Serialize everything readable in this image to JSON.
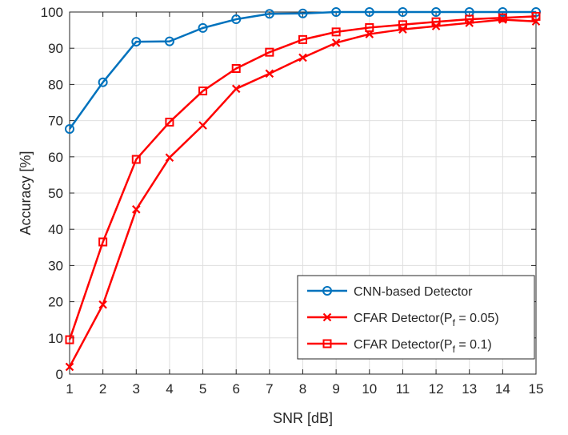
{
  "chart_data": {
    "type": "line",
    "xlabel": "SNR [dB]",
    "ylabel": "Accuracy [%]",
    "xlim": [
      1,
      15
    ],
    "ylim": [
      0,
      100
    ],
    "xticks": [
      1,
      2,
      3,
      4,
      5,
      6,
      7,
      8,
      9,
      10,
      11,
      12,
      13,
      14,
      15
    ],
    "yticks": [
      0,
      10,
      20,
      30,
      40,
      50,
      60,
      70,
      80,
      90,
      100
    ],
    "grid": true,
    "legend_position": "bottom-right",
    "x": [
      1,
      2,
      3,
      4,
      5,
      6,
      7,
      8,
      9,
      10,
      11,
      12,
      13,
      14,
      15
    ],
    "series": [
      {
        "name": "CNN-based Detector",
        "color": "#0072BD",
        "marker": "circle",
        "values": [
          67.7,
          80.6,
          91.8,
          91.9,
          95.6,
          98.0,
          99.5,
          99.6,
          100,
          100,
          100,
          100,
          100,
          100,
          100
        ]
      },
      {
        "name": "CFAR Detector(P",
        "name_sub": "f",
        "name_suffix": " = 0.05)",
        "color": "#FF0000",
        "marker": "x",
        "values": [
          2.0,
          19.2,
          45.5,
          59.8,
          68.7,
          78.8,
          83.0,
          87.4,
          91.5,
          93.9,
          95.2,
          96.1,
          97.0,
          97.9,
          97.4
        ]
      },
      {
        "name": "CFAR Detector(P",
        "name_sub": "f",
        "name_suffix": " = 0.1)",
        "color": "#FF0000",
        "marker": "square",
        "values": [
          9.5,
          36.5,
          59.3,
          69.6,
          78.2,
          84.4,
          88.9,
          92.4,
          94.5,
          95.7,
          96.5,
          97.3,
          98.0,
          98.4,
          98.8
        ]
      }
    ]
  }
}
